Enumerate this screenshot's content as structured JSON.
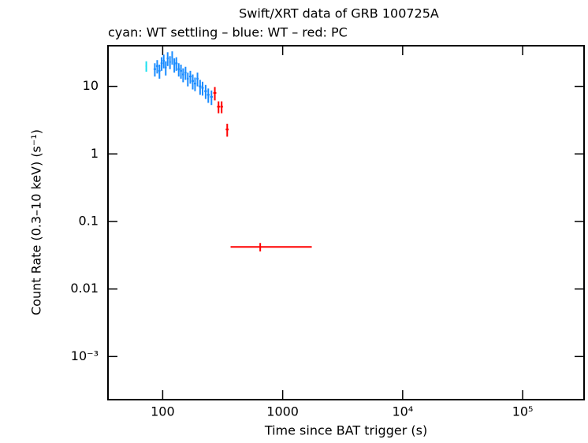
{
  "chart_data": {
    "type": "errorbar",
    "title": "Swift/XRT data of GRB 100725A",
    "subtitle": "cyan: WT settling – blue: WT – red: PC",
    "x_label": "Time since BAT trigger (s)",
    "y_label": "Count Rate (0.3–10 keV) (s⁻¹)",
    "xscale": "log",
    "yscale": "log",
    "xlim": [
      35,
      325000
    ],
    "ylim": [
      0.00023,
      40
    ],
    "xticks": [
      100,
      1000,
      {
        "value": 10000,
        "label": "10⁴"
      },
      {
        "value": 100000,
        "label": "10⁵"
      }
    ],
    "yticks": [
      10,
      1,
      0.1,
      0.01,
      {
        "value": 0.001,
        "label": "10⁻³"
      }
    ],
    "series": [
      {
        "name": "WT settling",
        "color": "#18e0f0",
        "x": [
          73
        ],
        "xerr_minus": [
          1
        ],
        "xerr_plus": [
          1
        ],
        "y": [
          20
        ],
        "yerr": [
          3.5
        ]
      },
      {
        "name": "WT",
        "color": "#1a8cff",
        "x": [
          86,
          90,
          94,
          98,
          102,
          106,
          110,
          115,
          120,
          125,
          130,
          136,
          142,
          148,
          155,
          162,
          170,
          178,
          186,
          195,
          205,
          215,
          228,
          240,
          255
        ],
        "xerr_minus": [
          2,
          2,
          2,
          2,
          2,
          2,
          2,
          2,
          2,
          2,
          3,
          3,
          3,
          3,
          3,
          3,
          4,
          4,
          4,
          4,
          5,
          5,
          6,
          6,
          7
        ],
        "xerr_plus": [
          2,
          2,
          2,
          2,
          2,
          2,
          2,
          2,
          2,
          2,
          3,
          3,
          3,
          3,
          3,
          3,
          4,
          4,
          4,
          4,
          5,
          5,
          6,
          6,
          7
        ],
        "y": [
          18,
          20,
          17,
          22,
          24,
          19,
          26,
          23,
          27,
          21,
          22,
          18,
          17,
          15,
          16,
          13,
          14,
          12,
          11,
          13,
          10,
          9.5,
          8.5,
          7.5,
          7
        ],
        "yerr": [
          4,
          4.5,
          4,
          5,
          5.5,
          4.5,
          6,
          5,
          6,
          5,
          5,
          4,
          4,
          3.5,
          3.5,
          3,
          3,
          3,
          2.5,
          3,
          2.5,
          2.2,
          2,
          1.8,
          1.7
        ]
      },
      {
        "name": "PC",
        "color": "#ff0000",
        "x": [
          272,
          292,
          310,
          345,
          650
        ],
        "xerr_minus": [
          8,
          8,
          8,
          10,
          282
        ],
        "xerr_plus": [
          8,
          8,
          8,
          10,
          1098
        ],
        "y": [
          8,
          5,
          5,
          2.3,
          0.042
        ],
        "yerr": [
          1.8,
          1,
          1,
          0.5,
          0.006
        ]
      }
    ]
  }
}
